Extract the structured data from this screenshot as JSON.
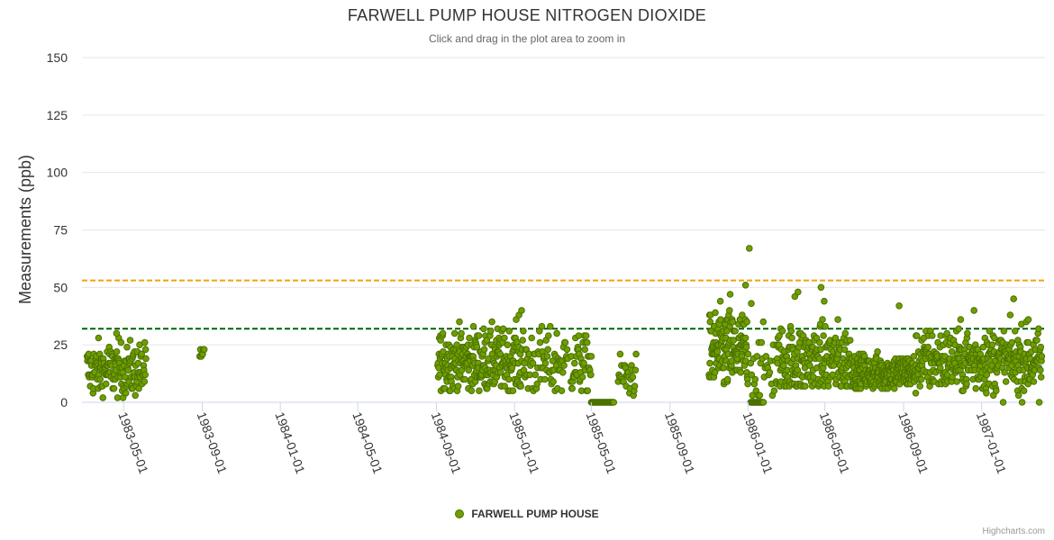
{
  "chart_data": {
    "type": "scatter",
    "title": "FARWELL PUMP HOUSE NITROGEN DIOXIDE",
    "subtitle": "Click and drag in the plot area to zoom in",
    "ylabel": "Measurements (ppb)",
    "xlabel": "",
    "ylim": [
      0,
      150
    ],
    "yticks": [
      0,
      25,
      50,
      75,
      100,
      125,
      150
    ],
    "xlim": [
      "1983-02-25",
      "1987-04-10"
    ],
    "xticks": [
      "1983-05-01",
      "1983-09-01",
      "1984-01-01",
      "1984-05-01",
      "1984-09-01",
      "1985-01-01",
      "1985-05-01",
      "1985-09-01",
      "1986-01-01",
      "1986-05-01",
      "1986-09-01",
      "1987-01-01"
    ],
    "reference_lines": [
      {
        "value": 53,
        "color": "#f0a30a",
        "style": "dashed"
      },
      {
        "value": 32,
        "color": "#006400",
        "style": "dashed"
      }
    ],
    "series": [
      {
        "name": "FARWELL PUMP HOUSE",
        "color": "#6f9e00",
        "clusters": [
          {
            "start": "1983-03-05",
            "end": "1983-06-05",
            "count": 150,
            "mean": 14,
            "spread": 6,
            "min": 2,
            "max": 30
          },
          {
            "start": "1983-08-28",
            "end": "1983-09-04",
            "count": 7,
            "mean": 18,
            "spread": 5,
            "min": 12,
            "max": 23
          },
          {
            "start": "1984-09-03",
            "end": "1985-01-10",
            "count": 260,
            "mean": 18,
            "spread": 7,
            "min": 5,
            "max": 40
          },
          {
            "start": "1985-01-10",
            "end": "1985-03-25",
            "count": 80,
            "mean": 17,
            "spread": 8,
            "min": 3,
            "max": 33
          },
          {
            "start": "1985-03-30",
            "end": "1985-05-01",
            "count": 45,
            "mean": 17,
            "spread": 7,
            "min": 5,
            "max": 29
          },
          {
            "start": "1985-05-01",
            "end": "1985-06-05",
            "count": 30,
            "mean": 0,
            "spread": 0,
            "min": 0,
            "max": 0
          },
          {
            "start": "1985-06-12",
            "end": "1985-07-10",
            "count": 28,
            "mean": 11,
            "spread": 5,
            "min": 3,
            "max": 21
          },
          {
            "start": "1985-11-01",
            "end": "1986-01-01",
            "count": 140,
            "mean": 22,
            "spread": 9,
            "min": 5,
            "max": 50
          },
          {
            "start": "1986-01-05",
            "end": "1986-01-25",
            "count": 20,
            "mean": 0,
            "spread": 0,
            "min": 0,
            "max": 0
          },
          {
            "start": "1986-01-05",
            "end": "1986-02-15",
            "count": 30,
            "mean": 15,
            "spread": 8,
            "min": 3,
            "max": 36
          },
          {
            "start": "1986-02-15",
            "end": "1986-06-15",
            "count": 220,
            "mean": 18,
            "spread": 8,
            "min": 7,
            "max": 48
          },
          {
            "start": "1986-06-15",
            "end": "1986-09-20",
            "count": 230,
            "mean": 13,
            "spread": 4,
            "min": 6,
            "max": 34
          },
          {
            "start": "1986-09-20",
            "end": "1987-04-05",
            "count": 360,
            "mean": 18,
            "spread": 7,
            "min": 0,
            "max": 45
          }
        ],
        "outliers": [
          {
            "date": "1983-04-20",
            "value": 30
          },
          {
            "date": "1985-01-08",
            "value": 38
          },
          {
            "date": "1985-01-12",
            "value": 40
          },
          {
            "date": "1985-12-04",
            "value": 47
          },
          {
            "date": "1985-12-28",
            "value": 51
          },
          {
            "date": "1986-01-03",
            "value": 67
          },
          {
            "date": "1986-01-06",
            "value": 43
          },
          {
            "date": "1986-03-15",
            "value": 46
          },
          {
            "date": "1986-03-20",
            "value": 48
          },
          {
            "date": "1986-04-25",
            "value": 50
          },
          {
            "date": "1986-04-30",
            "value": 44
          },
          {
            "date": "1986-08-25",
            "value": 42
          },
          {
            "date": "1986-12-20",
            "value": 40
          },
          {
            "date": "1987-02-20",
            "value": 45
          },
          {
            "date": "1987-03-15",
            "value": 36
          },
          {
            "date": "1987-04-01",
            "value": 0
          }
        ]
      }
    ]
  },
  "credits": "Highcharts.com"
}
